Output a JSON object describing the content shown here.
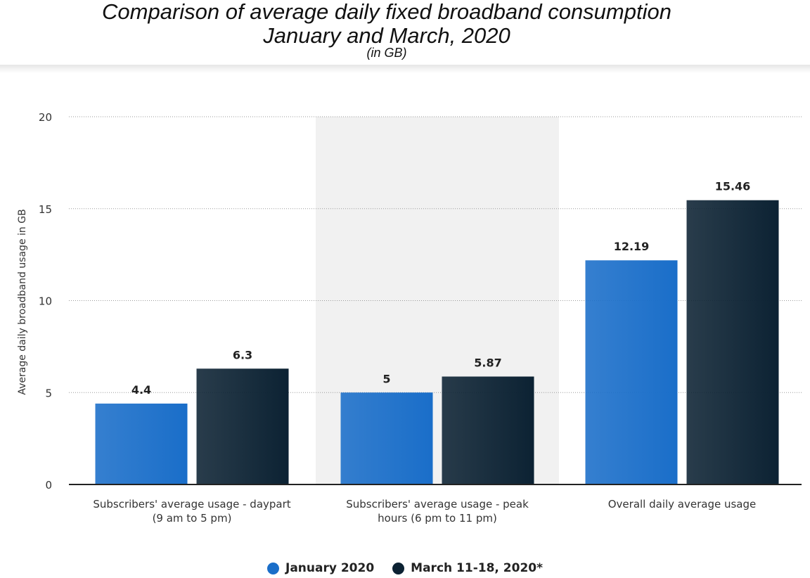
{
  "chart_data": {
    "type": "bar",
    "title": "Comparison of average daily fixed broadband consumption",
    "title_line2": "January and March, 2020",
    "subtitle": "(in GB)",
    "ylabel": "Average daily broadband usage in GB",
    "xlabel": "",
    "ylim": [
      0,
      20
    ],
    "yticks": [
      0,
      5,
      10,
      15,
      20
    ],
    "grid": true,
    "legend_position": "bottom",
    "categories": [
      [
        "Subscribers' average usage - daypart",
        "(9 am to 5 pm)"
      ],
      [
        "Subscribers' average usage - peak",
        "hours (6 pm to 11 pm)"
      ],
      [
        "Overall daily average usage"
      ]
    ],
    "highlighted_category_index": 1,
    "series": [
      {
        "name": "January 2020",
        "color": "#1a6ec9",
        "values": [
          4.4,
          5,
          12.19
        ],
        "labels": [
          "4.4",
          "5",
          "12.19"
        ]
      },
      {
        "name": "March 11-18, 2020*",
        "color": "#0c2233",
        "values": [
          6.3,
          5.87,
          15.46
        ],
        "labels": [
          "6.3",
          "5.87",
          "15.46"
        ]
      }
    ]
  }
}
